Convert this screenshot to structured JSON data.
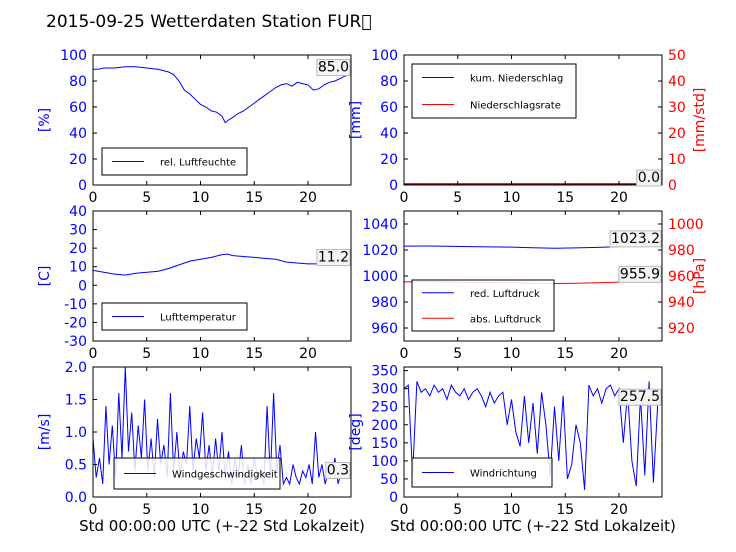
{
  "figure": {
    "title": "2015-09-25 Wetterdaten Station FUR\u0000",
    "colors": {
      "left_axis": "#0000ff",
      "right_axis": "#ff0000",
      "series_blue": "#0000ff",
      "series_red": "#ff0000",
      "series_dark": "#8b0000"
    }
  },
  "chart_data": [
    {
      "id": "humidity",
      "type": "line",
      "title": "",
      "xlabel": "",
      "ylabel": "[%]",
      "xlim": [
        0,
        24
      ],
      "ylim": [
        0,
        100
      ],
      "xticks": [
        0,
        5,
        10,
        15,
        20
      ],
      "yticks": [
        0,
        20,
        40,
        60,
        80,
        100
      ],
      "current_value": "85.0",
      "legend_position": "lower-left",
      "series": [
        {
          "name": "rel. Luftfeuchte",
          "color": "#0000ff",
          "x": [
            0,
            0.5,
            1,
            2,
            3,
            4,
            5,
            6,
            7,
            7.5,
            8,
            8.5,
            9,
            9.5,
            10,
            10.5,
            11,
            11.5,
            12,
            12.3,
            12.6,
            13,
            13.5,
            14,
            14.5,
            15,
            15.5,
            16,
            16.5,
            17,
            17.5,
            18,
            18.5,
            19,
            19.5,
            20,
            20.5,
            21,
            21.5,
            22,
            22.5,
            23,
            23.5,
            24
          ],
          "y": [
            89,
            89,
            90,
            90,
            91,
            91,
            90,
            89,
            87,
            85,
            80,
            73,
            70,
            66,
            62,
            60,
            57,
            56,
            53,
            48,
            50,
            52,
            55,
            57,
            60,
            63,
            66,
            69,
            72,
            75,
            77,
            78,
            76,
            79,
            78,
            77,
            73,
            74,
            77,
            79,
            80,
            82,
            84,
            85
          ]
        }
      ]
    },
    {
      "id": "precipitation",
      "type": "line",
      "title": "",
      "xlabel": "",
      "ylabel": "[mm]",
      "ylabel_right": "[mm/std]",
      "xlim": [
        0,
        24
      ],
      "ylim": [
        0,
        100
      ],
      "ylim_right": [
        0,
        50
      ],
      "xticks": [
        0,
        5,
        10,
        15,
        20
      ],
      "yticks": [
        0,
        20,
        40,
        60,
        80,
        100
      ],
      "yticks_right": [
        0,
        10,
        20,
        30,
        40,
        50
      ],
      "current_value": "0.0",
      "current_value_right": "0.0",
      "legend_position": "upper-left",
      "series": [
        {
          "name": "kum. Niederschlag",
          "color": "#0000ff",
          "axis": "left",
          "x": [
            0,
            24
          ],
          "y": [
            0,
            0
          ]
        },
        {
          "name": "Niederschlagsrate",
          "color": "#ff0000",
          "axis": "right",
          "x": [
            0,
            24
          ],
          "y": [
            0,
            0
          ]
        }
      ]
    },
    {
      "id": "temperature",
      "type": "line",
      "title": "",
      "xlabel": "",
      "ylabel": "[C]",
      "xlim": [
        0,
        24
      ],
      "ylim": [
        -30,
        40
      ],
      "xticks": [
        0,
        5,
        10,
        15,
        20
      ],
      "yticks": [
        -30,
        -20,
        -10,
        0,
        10,
        20,
        30,
        40
      ],
      "current_value": "11.2",
      "legend_position": "lower-left",
      "series": [
        {
          "name": "Lufttemperatur",
          "color": "#0000ff",
          "x": [
            0,
            1,
            2,
            3,
            4,
            5,
            6,
            7,
            8,
            9,
            10,
            11,
            12,
            12.5,
            13,
            14,
            15,
            16,
            17,
            18,
            19,
            20,
            21,
            22,
            23,
            24
          ],
          "y": [
            8,
            7,
            6,
            5.5,
            6.5,
            7,
            7.5,
            9,
            11,
            13,
            14,
            15,
            16.5,
            16.8,
            16,
            15.5,
            15,
            14.5,
            14,
            12.5,
            12,
            11.5,
            11.5,
            11.5,
            11.3,
            11.2
          ]
        }
      ]
    },
    {
      "id": "pressure",
      "type": "line",
      "title": "",
      "xlabel": "",
      "ylabel": "",
      "ylabel_right": "[hPa]",
      "xlim": [
        0,
        24
      ],
      "ylim": [
        950,
        1050
      ],
      "ylim_right": [
        910,
        1010
      ],
      "xticks": [
        0,
        5,
        10,
        15,
        20
      ],
      "yticks": [
        960,
        980,
        1000,
        1020,
        1040
      ],
      "yticks_right": [
        920,
        940,
        960,
        980,
        1000
      ],
      "current_value": "1023.2",
      "current_value_right": "955.9",
      "legend_position": "lower-left",
      "series": [
        {
          "name": "red. Luftdruck",
          "color": "#0000ff",
          "axis": "left",
          "x": [
            0,
            2,
            4,
            6,
            8,
            10,
            12,
            14,
            16,
            18,
            20,
            22,
            24
          ],
          "y": [
            1023.0,
            1023.1,
            1022.9,
            1022.6,
            1022.4,
            1022.2,
            1021.8,
            1021.4,
            1021.6,
            1022.0,
            1022.6,
            1023.0,
            1023.2
          ]
        },
        {
          "name": "abs. Luftdruck",
          "color": "#ff0000",
          "axis": "right",
          "x": [
            0,
            2,
            4,
            6,
            8,
            10,
            12,
            14,
            16,
            18,
            20,
            22,
            24
          ],
          "y": [
            955.5,
            955.6,
            955.4,
            955.2,
            955.0,
            954.8,
            954.5,
            954.2,
            954.4,
            954.8,
            955.3,
            955.6,
            955.9
          ]
        }
      ]
    },
    {
      "id": "windspeed",
      "type": "line",
      "title": "",
      "xlabel": "Std 00:00:00 UTC (+-22 Std Lokalzeit)",
      "ylabel": "[m/s]",
      "xlim": [
        0,
        24
      ],
      "ylim": [
        0,
        2
      ],
      "xticks": [
        0,
        5,
        10,
        15,
        20
      ],
      "yticks": [
        0.0,
        0.5,
        1.0,
        1.5,
        2.0
      ],
      "current_value": "0.3",
      "legend_position": "lower-center",
      "series": [
        {
          "name": "Windgeschwindigkeit",
          "color": "#0000ff",
          "x": [
            0,
            0.3,
            0.6,
            0.9,
            1.2,
            1.5,
            1.8,
            2.1,
            2.4,
            2.7,
            3.0,
            3.3,
            3.6,
            3.9,
            4.2,
            4.5,
            4.8,
            5.1,
            5.4,
            5.7,
            6.0,
            6.3,
            6.6,
            6.9,
            7.2,
            7.5,
            7.8,
            8.1,
            8.4,
            8.7,
            9.0,
            9.3,
            9.6,
            9.9,
            10.2,
            10.5,
            10.8,
            11.1,
            11.4,
            11.7,
            12.0,
            12.3,
            12.6,
            12.9,
            13.2,
            13.5,
            13.8,
            14.1,
            14.4,
            14.7,
            15.0,
            15.3,
            15.6,
            15.9,
            16.2,
            16.5,
            16.8,
            17.1,
            17.4,
            17.7,
            18.0,
            18.3,
            18.6,
            18.9,
            19.2,
            19.5,
            19.8,
            20.1,
            20.4,
            20.7,
            21.0,
            21.3,
            21.6,
            21.9,
            22.2,
            22.5,
            22.8,
            23.1,
            23.4,
            23.7
          ],
          "y": [
            0.9,
            0.3,
            0.6,
            0.2,
            1.4,
            0.5,
            1.1,
            0.3,
            1.6,
            0.6,
            2.0,
            0.7,
            1.3,
            0.4,
            1.1,
            0.6,
            1.5,
            0.4,
            0.9,
            0.3,
            1.2,
            0.5,
            0.8,
            0.3,
            1.6,
            0.4,
            1.0,
            0.3,
            0.7,
            0.5,
            1.4,
            0.4,
            0.9,
            0.6,
            1.3,
            0.4,
            0.8,
            0.3,
            0.9,
            0.4,
            1.0,
            0.3,
            0.7,
            0.2,
            0.6,
            0.3,
            0.8,
            0.2,
            0.5,
            0.2,
            0.6,
            0.3,
            0.4,
            0.2,
            1.4,
            0.3,
            1.6,
            0.4,
            0.8,
            0.2,
            0.3,
            0.2,
            0.5,
            0.3,
            0.2,
            0.4,
            0.3,
            0.5,
            0.2,
            1.0,
            0.3,
            0.5,
            0.2,
            0.4,
            0.3,
            0.6,
            0.2,
            0.4,
            0.3,
            0.3
          ]
        }
      ]
    },
    {
      "id": "winddirection",
      "type": "line",
      "title": "",
      "xlabel": "Std 00:00:00 UTC (+-22 Std Lokalzeit)",
      "ylabel": "[deg]",
      "xlim": [
        0,
        24
      ],
      "ylim": [
        0,
        360
      ],
      "xticks": [
        0,
        5,
        10,
        15,
        20
      ],
      "yticks": [
        0,
        50,
        100,
        150,
        200,
        250,
        300,
        350
      ],
      "current_value": "257.5",
      "legend_position": "lower-left",
      "series": [
        {
          "name": "Windrichtung",
          "color": "#0000ff",
          "x": [
            0,
            0.4,
            0.8,
            1.2,
            1.6,
            2.0,
            2.4,
            2.8,
            3.2,
            3.6,
            4.0,
            4.4,
            4.8,
            5.2,
            5.6,
            6.0,
            6.4,
            6.8,
            7.2,
            7.6,
            8.0,
            8.4,
            8.8,
            9.2,
            9.6,
            10.0,
            10.4,
            10.8,
            11.2,
            11.6,
            12.0,
            12.4,
            12.8,
            13.2,
            13.6,
            14.0,
            14.4,
            14.8,
            15.2,
            15.6,
            16.0,
            16.4,
            16.8,
            17.2,
            17.6,
            18.0,
            18.4,
            18.8,
            19.2,
            19.6,
            20.0,
            20.4,
            20.8,
            21.2,
            21.6,
            22.0,
            22.4,
            22.8,
            23.2,
            23.6
          ],
          "y": [
            300,
            310,
            60,
            320,
            290,
            300,
            280,
            310,
            290,
            300,
            270,
            310,
            290,
            280,
            300,
            270,
            290,
            300,
            280,
            250,
            290,
            260,
            280,
            290,
            200,
            270,
            180,
            140,
            280,
            150,
            260,
            120,
            290,
            200,
            60,
            250,
            100,
            280,
            50,
            90,
            200,
            150,
            20,
            310,
            280,
            300,
            260,
            300,
            310,
            280,
            300,
            150,
            290,
            100,
            30,
            280,
            60,
            320,
            40,
            257
          ]
        }
      ]
    }
  ]
}
